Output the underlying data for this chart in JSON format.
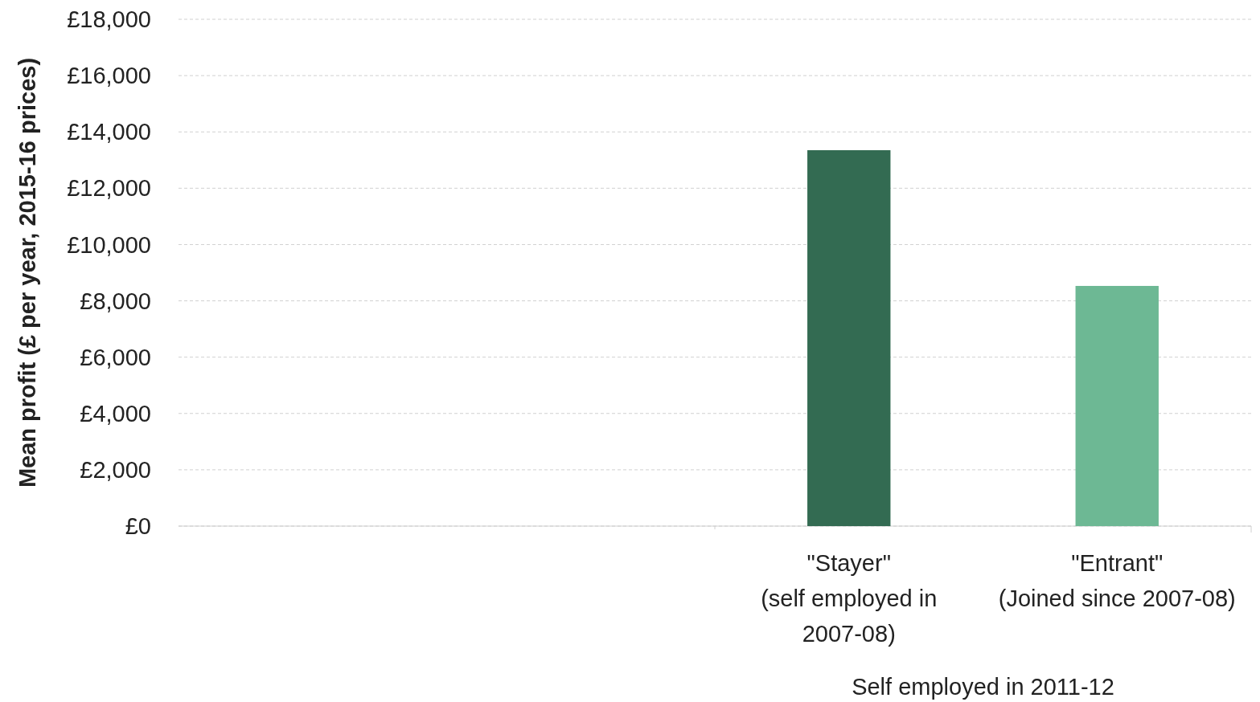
{
  "chart_data": {
    "type": "bar",
    "ylabel": "Mean profit (£ per year, 2015-16 prices)",
    "xlabel": "Self employed in 2011-12",
    "categories": [
      null,
      null,
      "\"Stayer\" (self employed in 2007-08)",
      "\"Entrant\" (Joined since 2007-08)"
    ],
    "values": [
      null,
      null,
      13350,
      8530
    ],
    "colors": [
      "#336b52",
      "#336b52",
      "#336b52",
      "#6db894"
    ],
    "ylim": [
      0,
      18000
    ],
    "yticks": [
      {
        "value": 0,
        "label": "£0"
      },
      {
        "value": 2000,
        "label": "£2,000"
      },
      {
        "value": 4000,
        "label": "£4,000"
      },
      {
        "value": 6000,
        "label": "£6,000"
      },
      {
        "value": 8000,
        "label": "£8,000"
      },
      {
        "value": 10000,
        "label": "£10,000"
      },
      {
        "value": 12000,
        "label": "£12,000"
      },
      {
        "value": 14000,
        "label": "£14,000"
      },
      {
        "value": 16000,
        "label": "£16,000"
      },
      {
        "value": 18000,
        "label": "£18,000"
      }
    ],
    "grid": "y"
  }
}
